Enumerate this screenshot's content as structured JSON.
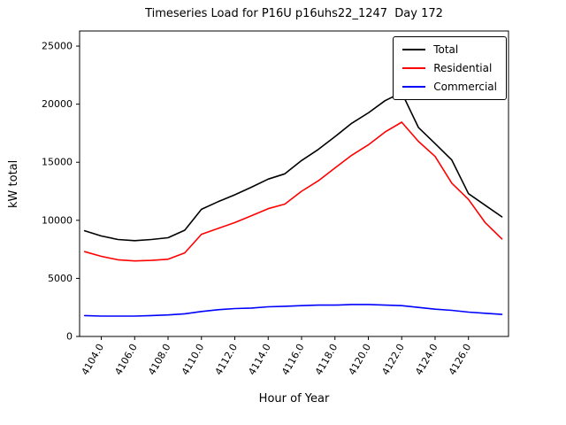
{
  "title": "Timeseries Load for P16U p16uhs22_1247  Day 172",
  "chart_data": {
    "type": "line",
    "title": "Timeseries Load for P16U p16uhs22_1247  Day 172",
    "xlabel": "Hour of Year",
    "ylabel": "kW total",
    "grid": false,
    "legend_position": "upper right",
    "xlim": [
      4102.7,
      4128.4
    ],
    "ylim": [
      0,
      26300
    ],
    "xticks": [
      4104,
      4106,
      4108,
      4110,
      4112,
      4114,
      4116,
      4118,
      4120,
      4122,
      4124,
      4126
    ],
    "xtick_labels": [
      "4104.0",
      "4106.0",
      "4108.0",
      "4110.0",
      "4112.0",
      "4114.0",
      "4116.0",
      "4118.0",
      "4120.0",
      "4122.0",
      "4124.0",
      "4126.0"
    ],
    "yticks": [
      0,
      5000,
      10000,
      15000,
      20000,
      25000
    ],
    "ytick_labels": [
      "0",
      "5000",
      "10000",
      "15000",
      "20000",
      "25000"
    ],
    "x": [
      4103,
      4104,
      4105,
      4106,
      4107,
      4108,
      4109,
      4110,
      4111,
      4112,
      4113,
      4114,
      4115,
      4116,
      4117,
      4118,
      4119,
      4120,
      4121,
      4122,
      4123,
      4124,
      4125,
      4126,
      4127,
      4128
    ],
    "series": [
      {
        "name": "Total",
        "color": "#000000",
        "values": [
          9100,
          8650,
          8350,
          8250,
          8350,
          8500,
          9150,
          10950,
          11600,
          12200,
          12850,
          13550,
          14000,
          15150,
          16100,
          17200,
          18350,
          19250,
          20300,
          21000,
          18000,
          16600,
          15200,
          12300,
          11300,
          10300
        ]
      },
      {
        "name": "Residential",
        "color": "#ff0000",
        "values": [
          7300,
          6900,
          6600,
          6500,
          6550,
          6650,
          7200,
          8800,
          9300,
          9800,
          10400,
          11000,
          11400,
          12500,
          13400,
          14500,
          15600,
          16500,
          17600,
          18450,
          16800,
          15500,
          13200,
          11800,
          9800,
          8400
        ]
      },
      {
        "name": "Commercial",
        "color": "#0000ff",
        "values": [
          1800,
          1750,
          1750,
          1750,
          1800,
          1850,
          1950,
          2150,
          2300,
          2400,
          2450,
          2550,
          2600,
          2650,
          2700,
          2700,
          2750,
          2750,
          2700,
          2650,
          2500,
          2350,
          2250,
          2100,
          2000,
          1900
        ]
      }
    ]
  }
}
